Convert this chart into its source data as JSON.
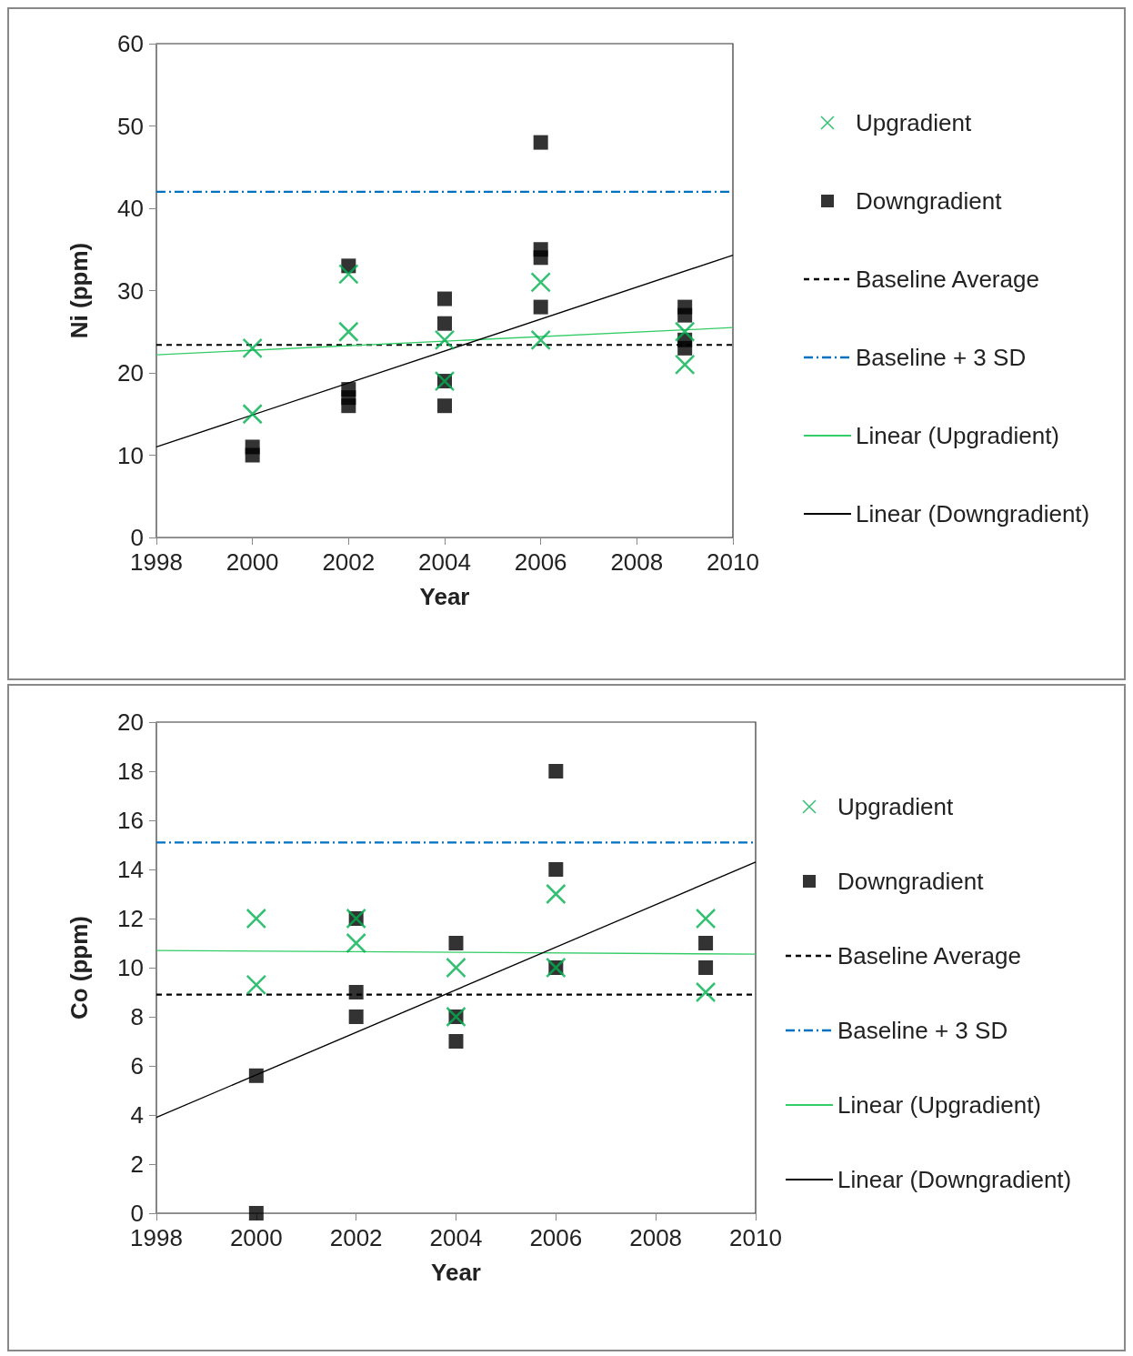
{
  "chart_data": [
    {
      "type": "scatter",
      "xlabel": "Year",
      "ylabel": "Ni (ppm)",
      "xlim": [
        1998,
        2010
      ],
      "xticks": [
        1998,
        2000,
        2002,
        2004,
        2006,
        2008,
        2010
      ],
      "ylim": [
        0,
        60
      ],
      "yticks": [
        0,
        10,
        20,
        30,
        40,
        50,
        60
      ],
      "grid": false,
      "legend": "right",
      "series": [
        {
          "name": "Upgradient",
          "color": "#00b050",
          "marker": "cross",
          "x": [
            2000,
            2000,
            2002,
            2002,
            2004,
            2004,
            2006,
            2006,
            2009,
            2009
          ],
          "values": [
            23,
            15,
            32,
            25,
            24,
            19,
            31,
            24,
            25,
            21
          ]
        },
        {
          "name": "Downgradient",
          "color": "#000000",
          "marker": "square",
          "x": [
            2000,
            2000,
            2002,
            2002,
            2002,
            2002,
            2004,
            2004,
            2004,
            2004,
            2006,
            2006,
            2006,
            2006,
            2009,
            2009,
            2009,
            2009
          ],
          "values": [
            11,
            10,
            33,
            18,
            17,
            16,
            29,
            26,
            19,
            16,
            48,
            35,
            34,
            28,
            28,
            27,
            24,
            23
          ]
        },
        {
          "name": "Linear (Upgradient)",
          "type": "line",
          "color": "#33cc66",
          "marker": "none",
          "line_style": "solid",
          "x": [
            1998,
            2010
          ],
          "values": [
            22.2,
            25.5
          ]
        },
        {
          "name": "Linear (Downgradient)",
          "type": "line",
          "color": "#000000",
          "marker": "none",
          "line_style": "solid",
          "x": [
            1998,
            2010
          ],
          "values": [
            11,
            34.3
          ]
        }
      ],
      "ref_lines": [
        {
          "axis": "y",
          "value": 23.4,
          "label": "Baseline Average",
          "color": "#000000",
          "line_style": "dashed"
        },
        {
          "axis": "y",
          "value": 42,
          "label": "Baseline + 3 SD",
          "color": "#0070c0",
          "line_style": "dashdot"
        }
      ]
    },
    {
      "type": "scatter",
      "xlabel": "Year",
      "ylabel": "Co (ppm)",
      "xlim": [
        1998,
        2010
      ],
      "xticks": [
        1998,
        2000,
        2002,
        2004,
        2006,
        2008,
        2010
      ],
      "ylim": [
        0,
        20
      ],
      "yticks": [
        0,
        2,
        4,
        6,
        8,
        10,
        12,
        14,
        16,
        18,
        20
      ],
      "grid": false,
      "legend": "right",
      "series": [
        {
          "name": "Upgradient",
          "color": "#00b050",
          "marker": "cross",
          "x": [
            2000,
            2000,
            2002,
            2002,
            2004,
            2004,
            2006,
            2006,
            2009,
            2009
          ],
          "values": [
            12,
            9.3,
            12,
            11,
            10,
            8,
            13,
            10,
            12,
            9
          ]
        },
        {
          "name": "Downgradient",
          "color": "#000000",
          "marker": "square",
          "x": [
            2000,
            2000,
            2002,
            2002,
            2002,
            2004,
            2004,
            2004,
            2006,
            2006,
            2006,
            2009,
            2009
          ],
          "values": [
            5.6,
            0,
            12,
            9,
            8,
            11,
            8,
            7,
            18,
            14,
            10,
            11,
            10
          ]
        },
        {
          "name": "Linear (Upgradient)",
          "type": "line",
          "color": "#33cc66",
          "marker": "none",
          "line_style": "solid",
          "x": [
            1998,
            2010
          ],
          "values": [
            10.7,
            10.55
          ]
        },
        {
          "name": "Linear (Downgradient)",
          "type": "line",
          "color": "#000000",
          "marker": "none",
          "line_style": "solid",
          "x": [
            1998,
            2010
          ],
          "values": [
            3.9,
            14.3
          ]
        }
      ],
      "ref_lines": [
        {
          "axis": "y",
          "value": 8.9,
          "label": "Baseline Average",
          "color": "#000000",
          "line_style": "dashed"
        },
        {
          "axis": "y",
          "value": 15.1,
          "label": "Baseline + 3 SD",
          "color": "#0070c0",
          "line_style": "dashdot"
        }
      ]
    }
  ]
}
